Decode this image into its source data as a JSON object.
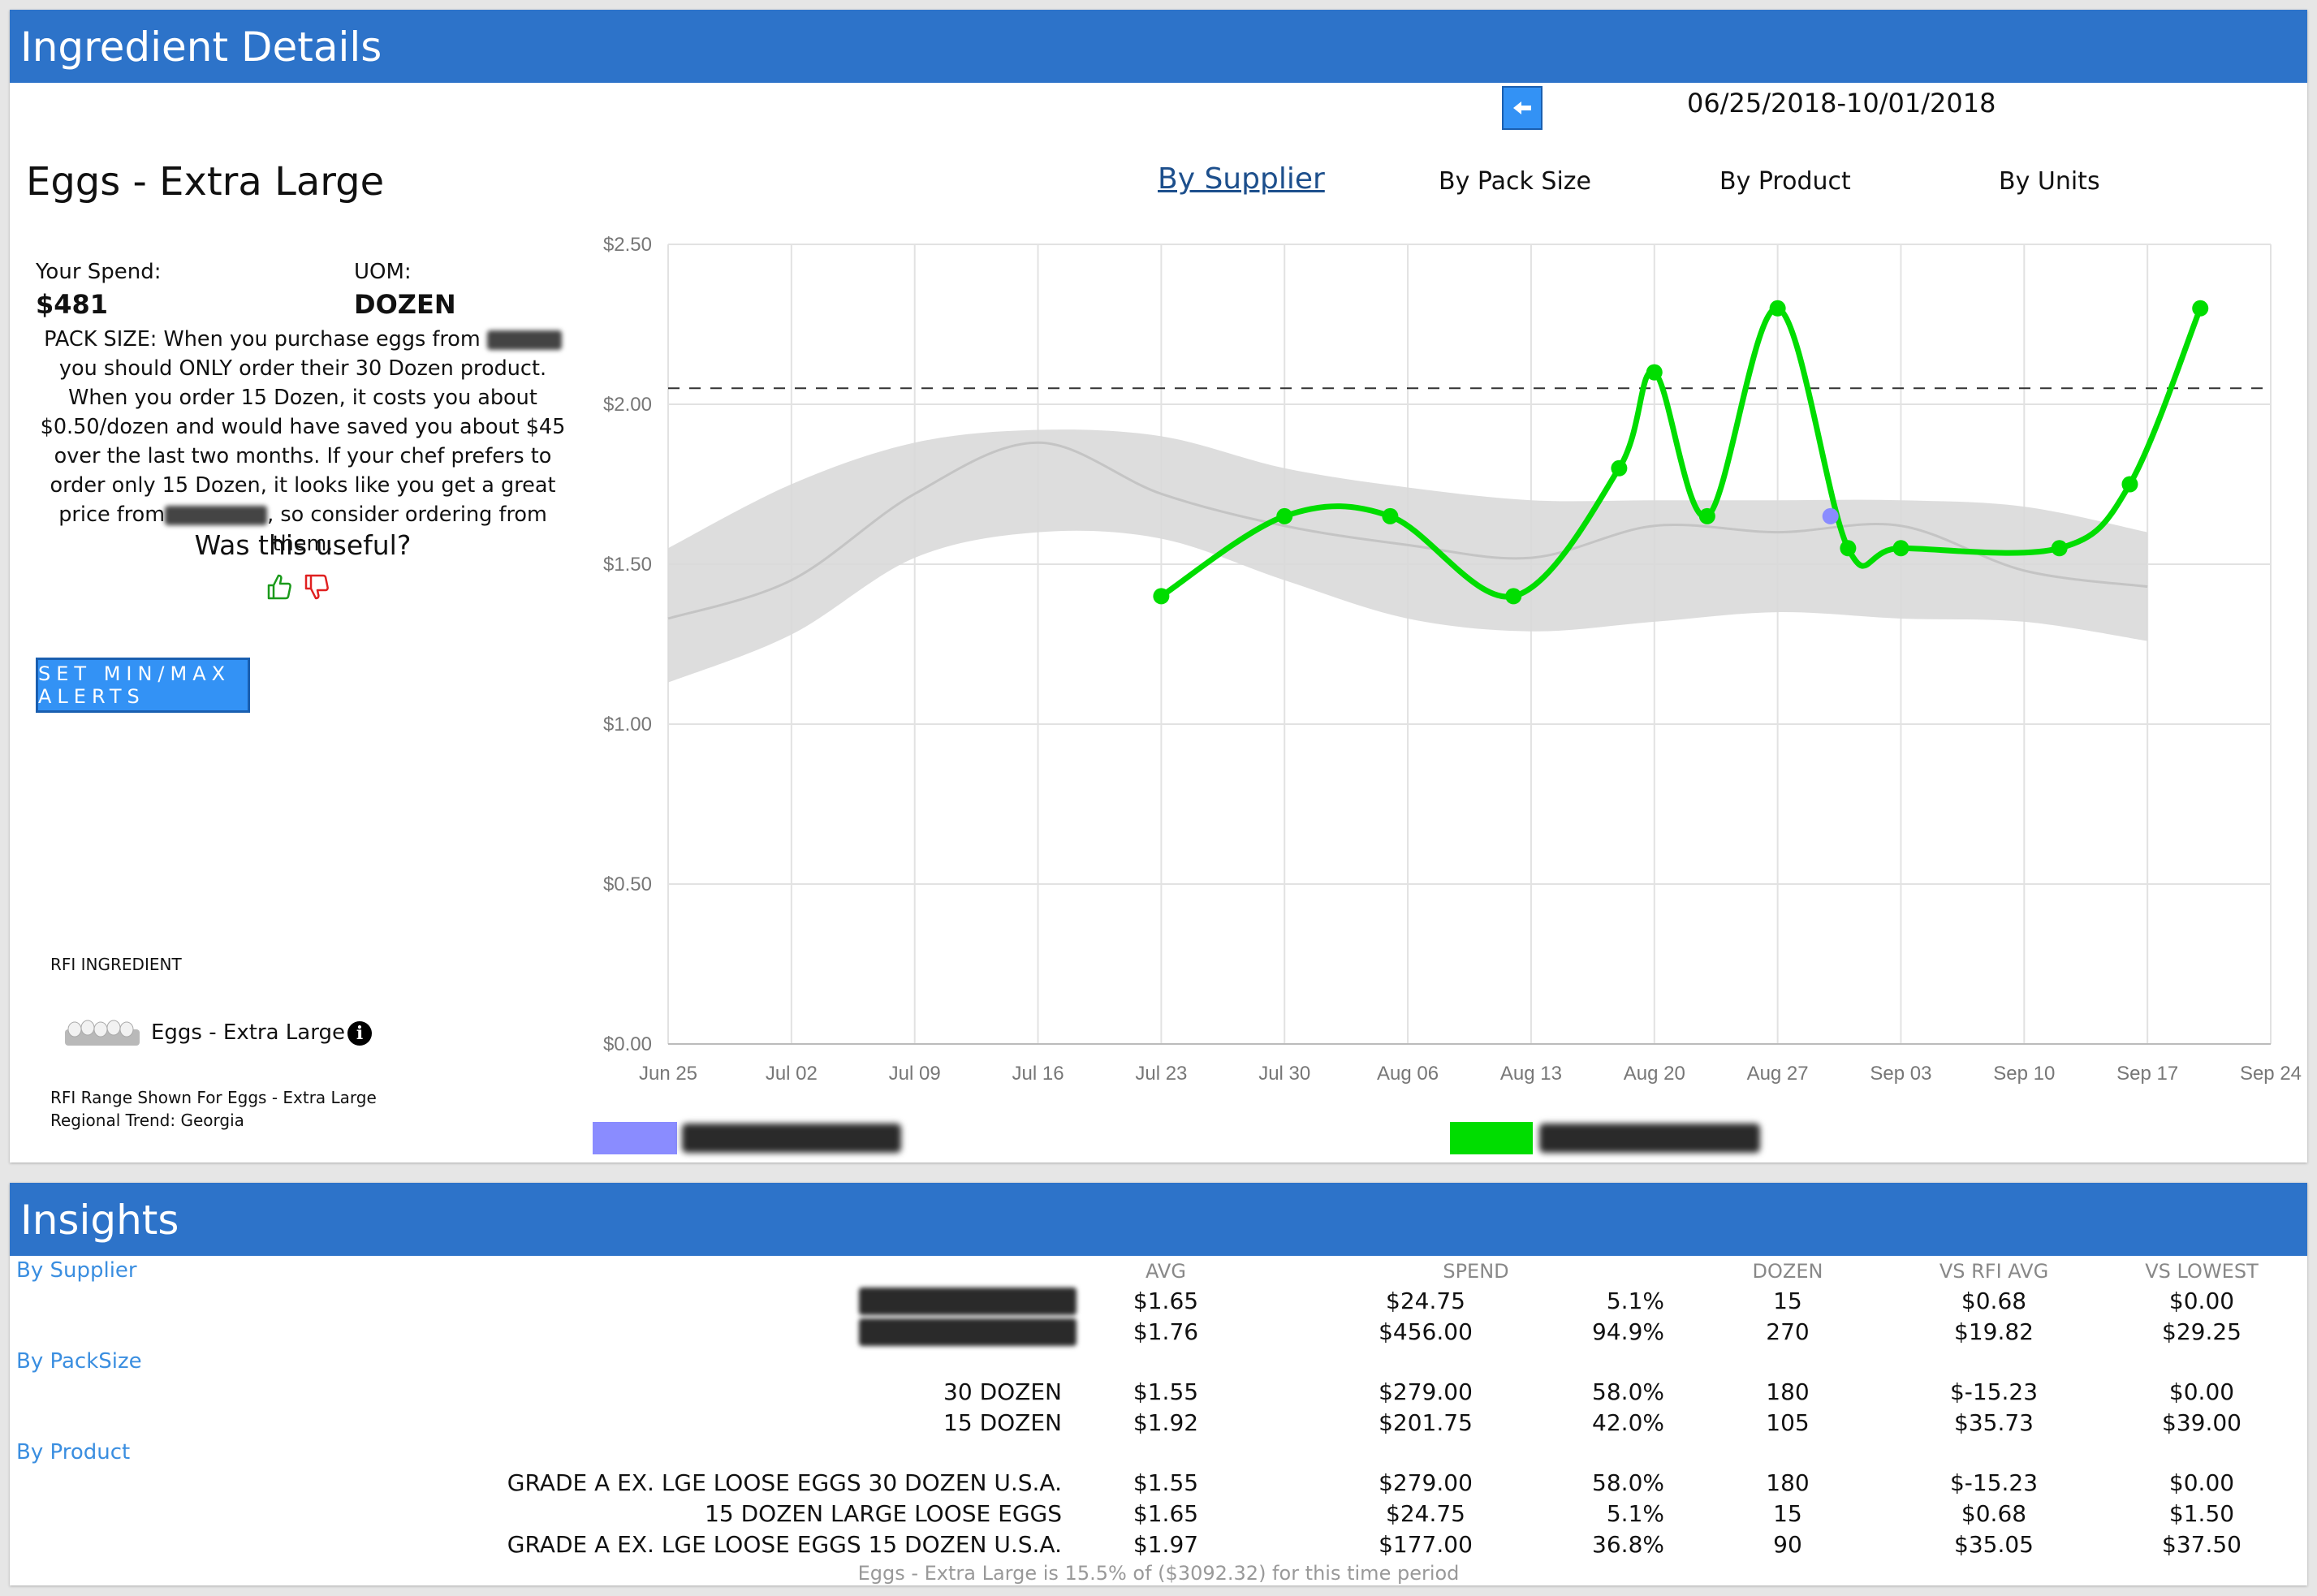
{
  "details": {
    "header": "Ingredient Details",
    "date_range": "06/25/2018-10/01/2018",
    "title": "Eggs - Extra Large",
    "tabs": [
      "By Supplier",
      "By Pack Size",
      "By Product",
      "By Units"
    ],
    "spend_label": "Your Spend:",
    "spend_value": "$481",
    "uom_label": "UOM:",
    "uom_value": "DOZEN",
    "pack_text_1": "PACK SIZE: When you purchase eggs from",
    "pack_text_2": "you should ONLY order their 30 Dozen product. When you order 15 Dozen, it costs you about $0.50/dozen and would have saved you about $45 over the last two months. If your chef prefers to order only 15 Dozen, it looks like you get a great price from",
    "pack_text_3": ", so consider ordering from them.",
    "useful_q": "Was this useful?",
    "alerts_btn": "SET MIN/MAX ALERTS",
    "rfi_label": "RFI INGREDIENT",
    "rfi_item": "Eggs - Extra Large",
    "rfi_note_1": "RFI Range Shown For Eggs - Extra Large",
    "rfi_note_2": "Regional Trend: Georgia",
    "colors": {
      "header": "#2d73c9",
      "series_a": "#8a8cff",
      "series_b": "#00dd00",
      "range": "#d9d9d9"
    }
  },
  "chart_data": {
    "type": "line",
    "x_ticks": [
      "Jun 25",
      "Jul 02",
      "Jul 09",
      "Jul 16",
      "Jul 23",
      "Jul 30",
      "Aug 06",
      "Aug 13",
      "Aug 20",
      "Aug 27",
      "Sep 03",
      "Sep 10",
      "Sep 17",
      "Sep 24"
    ],
    "y_ticks": [
      "$0.00",
      "$0.50",
      "$1.00",
      "$1.50",
      "$2.00",
      "$2.50"
    ],
    "ylim": [
      0,
      2.5
    ],
    "reference_line": 2.05,
    "series": [
      {
        "x": [
          28,
          35,
          41,
          48,
          54,
          56,
          59,
          63,
          67,
          70,
          79,
          83,
          87
        ],
        "values": [
          1.4,
          1.65,
          1.65,
          1.4,
          1.8,
          2.1,
          1.65,
          2.3,
          1.55,
          1.55,
          1.55,
          1.75,
          2.3
        ]
      },
      {
        "x": [
          66
        ],
        "values": [
          1.65
        ]
      }
    ],
    "range_band": {
      "x": [
        0,
        7,
        14,
        21,
        28,
        35,
        42,
        49,
        56,
        63,
        70,
        77,
        84
      ],
      "upper": [
        1.55,
        1.75,
        1.88,
        1.92,
        1.9,
        1.8,
        1.74,
        1.7,
        1.7,
        1.7,
        1.7,
        1.68,
        1.6
      ],
      "lower": [
        1.13,
        1.28,
        1.52,
        1.6,
        1.58,
        1.45,
        1.33,
        1.29,
        1.32,
        1.35,
        1.33,
        1.32,
        1.26
      ],
      "mid": [
        1.33,
        1.45,
        1.72,
        1.88,
        1.72,
        1.62,
        1.56,
        1.52,
        1.62,
        1.6,
        1.62,
        1.48,
        1.43
      ]
    },
    "x_range": [
      0,
      91
    ]
  },
  "insights": {
    "header": "Insights",
    "sections": [
      "By Supplier",
      "By PackSize",
      "By Product"
    ],
    "columns": [
      "AVG",
      "SPEND",
      "DOZEN",
      "VS RFI AVG",
      "VS LOWEST"
    ],
    "supplier_rows": [
      {
        "avg": "$1.65",
        "spend": "$24.75",
        "pct": "5.1%",
        "dozen": "15",
        "vs_rfi": "$0.68",
        "vs_low": "$0.00"
      },
      {
        "avg": "$1.76",
        "spend": "$456.00",
        "pct": "94.9%",
        "dozen": "270",
        "vs_rfi": "$19.82",
        "vs_low": "$29.25"
      }
    ],
    "pack_rows": [
      {
        "name": "30 DOZEN",
        "avg": "$1.55",
        "spend": "$279.00",
        "pct": "58.0%",
        "dozen": "180",
        "vs_rfi": "$-15.23",
        "vs_low": "$0.00"
      },
      {
        "name": "15 DOZEN",
        "avg": "$1.92",
        "spend": "$201.75",
        "pct": "42.0%",
        "dozen": "105",
        "vs_rfi": "$35.73",
        "vs_low": "$39.00"
      }
    ],
    "product_rows": [
      {
        "name": "GRADE A EX. LGE LOOSE EGGS 30 DOZEN U.S.A.",
        "avg": "$1.55",
        "spend": "$279.00",
        "pct": "58.0%",
        "dozen": "180",
        "vs_rfi": "$-15.23",
        "vs_low": "$0.00"
      },
      {
        "name": "15 DOZEN LARGE LOOSE EGGS",
        "avg": "$1.65",
        "spend": "$24.75",
        "pct": "5.1%",
        "dozen": "15",
        "vs_rfi": "$0.68",
        "vs_low": "$1.50"
      },
      {
        "name": "GRADE A EX. LGE LOOSE EGGS 15 DOZEN U.S.A.",
        "avg": "$1.97",
        "spend": "$177.00",
        "pct": "36.8%",
        "dozen": "90",
        "vs_rfi": "$35.05",
        "vs_low": "$37.50"
      }
    ],
    "footnote": "Eggs - Extra Large is 15.5% of ($3092.32) for this time period"
  }
}
